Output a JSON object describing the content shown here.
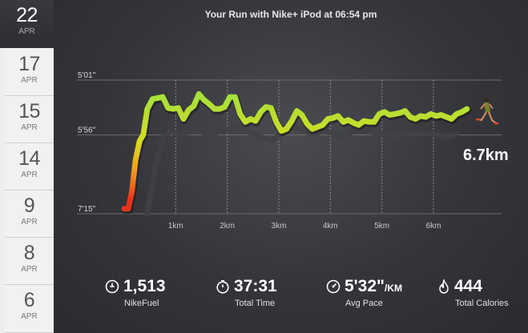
{
  "title": "Your Run with Nike+ iPod at 06:54 pm",
  "dates": [
    {
      "day": "22",
      "month": "APR",
      "active": true
    },
    {
      "day": "17",
      "month": "APR"
    },
    {
      "day": "15",
      "month": "APR"
    },
    {
      "day": "14",
      "month": "APR"
    },
    {
      "day": "9",
      "month": "APR"
    },
    {
      "day": "8",
      "month": "APR"
    },
    {
      "day": "6",
      "month": "APR"
    }
  ],
  "distance_label": "6.7km",
  "stats": {
    "fuel": {
      "value": "1,513",
      "label": "NikeFuel"
    },
    "time": {
      "value": "37:31",
      "label": "Total Time"
    },
    "pace": {
      "value": "5'32\"",
      "unit": "/KM",
      "label": "Avg Pace"
    },
    "calories": {
      "value": "444",
      "label": "Total Calories"
    }
  },
  "chart_data": {
    "type": "line",
    "title": "",
    "xlabel": "",
    "ylabel": "",
    "x_tick_labels": [
      "1km",
      "2km",
      "3km",
      "4km",
      "5km",
      "6km"
    ],
    "x_ticks_km": [
      1,
      2,
      3,
      4,
      5,
      6
    ],
    "y_tick_labels": [
      "5'01\"",
      "5'56\"",
      "7'15\""
    ],
    "y_ticks_sec_per_km": [
      301,
      356,
      435
    ],
    "ylim_sec_per_km": [
      301,
      435
    ],
    "xlim_km": [
      0,
      6.7
    ],
    "series": [
      {
        "role": "current run pace",
        "x_km": [
          0,
          0.08,
          0.15,
          0.22,
          0.3,
          0.37,
          0.45,
          0.55,
          0.65,
          0.75,
          0.85,
          0.95,
          1.05,
          1.15,
          1.25,
          1.35,
          1.45,
          1.55,
          1.65,
          1.75,
          1.85,
          1.95,
          2.05,
          2.15,
          2.25,
          2.35,
          2.45,
          2.55,
          2.65,
          2.75,
          2.85,
          2.95,
          3.05,
          3.15,
          3.25,
          3.35,
          3.45,
          3.55,
          3.65,
          3.75,
          3.85,
          3.95,
          4.05,
          4.15,
          4.25,
          4.35,
          4.45,
          4.55,
          4.65,
          4.75,
          4.85,
          4.95,
          5.05,
          5.15,
          5.25,
          5.35,
          5.45,
          5.55,
          5.65,
          5.75,
          5.85,
          5.95,
          6.05,
          6.15,
          6.25,
          6.35,
          6.45,
          6.55,
          6.65
        ],
        "y_sec_per_km": [
          430,
          430,
          413,
          381,
          362,
          356,
          330,
          320,
          319,
          318,
          329,
          330,
          329,
          340,
          331,
          327,
          315,
          321,
          325,
          330,
          330,
          328,
          318,
          318,
          335,
          343,
          340,
          342,
          333,
          328,
          329,
          343,
          352,
          350,
          342,
          332,
          336,
          345,
          350,
          348,
          346,
          340,
          339,
          337,
          343,
          341,
          344,
          346,
          342,
          343,
          343,
          335,
          333,
          336,
          335,
          334,
          332,
          338,
          340,
          337,
          338,
          335,
          337,
          336,
          338,
          340,
          335,
          333,
          330
        ]
      },
      {
        "role": "previous run pace (shadow)",
        "x_km": [
          0.45,
          0.6,
          0.75,
          0.9,
          1.05,
          1.25,
          1.45,
          1.65,
          1.85,
          2.05,
          2.25,
          2.45,
          2.65,
          2.85,
          3.05,
          3.25,
          3.45,
          3.65,
          3.85,
          4.05,
          4.25,
          4.45,
          4.65,
          4.85,
          5.05,
          5.25,
          5.45,
          5.65,
          5.85,
          6.05,
          6.25,
          6.45
        ],
        "y_sec_per_km": [
          435,
          390,
          358,
          352,
          356,
          353,
          350,
          358,
          352,
          350,
          348,
          354,
          358,
          362,
          355,
          348,
          350,
          356,
          352,
          354,
          358,
          352,
          350,
          354,
          356,
          357,
          353,
          356,
          354,
          356,
          358,
          355
        ]
      }
    ]
  }
}
